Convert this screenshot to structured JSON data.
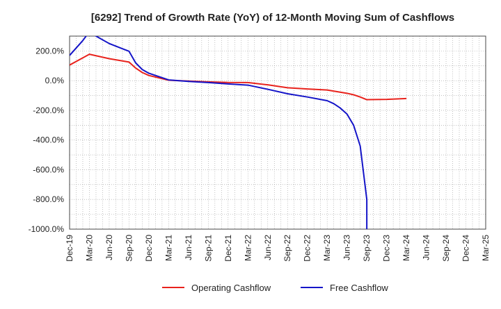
{
  "chart_data": {
    "type": "line",
    "title": "[6292]  Trend of Growth Rate (YoY) of 12-Month Moving Sum of Cashflows",
    "xlabel": "",
    "ylabel": "",
    "ylim": [
      -1000,
      300
    ],
    "grid": true,
    "legend_position": "bottom",
    "x_ticks": [
      "Dec-19",
      "Mar-20",
      "Jun-20",
      "Sep-20",
      "Dec-20",
      "Mar-21",
      "Jun-21",
      "Sep-21",
      "Dec-21",
      "Mar-22",
      "Jun-22",
      "Sep-22",
      "Dec-22",
      "Mar-23",
      "Jun-23",
      "Sep-23",
      "Dec-23",
      "Mar-24",
      "Jun-24",
      "Sep-24",
      "Dec-24",
      "Mar-25"
    ],
    "y_ticks": [
      {
        "value": 200,
        "label": "200.0%"
      },
      {
        "value": 0,
        "label": "0.0%"
      },
      {
        "value": -200,
        "label": "-200.0%"
      },
      {
        "value": -400,
        "label": "-400.0%"
      },
      {
        "value": -600,
        "label": "-600.0%"
      },
      {
        "value": -800,
        "label": "-800.0%"
      },
      {
        "value": -1000,
        "label": "-1000.0%"
      }
    ],
    "series": [
      {
        "name": "Operating Cashflow",
        "color": "#e8221c",
        "points": [
          {
            "x": "Dec-19",
            "y": 105
          },
          {
            "x": "Mar-20",
            "y": 178
          },
          {
            "x": "Jun-20",
            "y": 148
          },
          {
            "x": "Sep-20",
            "y": 125
          },
          {
            "x": "Oct-20",
            "y": 85
          },
          {
            "x": "Nov-20",
            "y": 55
          },
          {
            "x": "Dec-20",
            "y": 35
          },
          {
            "x": "Mar-21",
            "y": 3
          },
          {
            "x": "Jun-21",
            "y": -3
          },
          {
            "x": "Sep-21",
            "y": -8
          },
          {
            "x": "Dec-21",
            "y": -12
          },
          {
            "x": "Mar-22",
            "y": -13
          },
          {
            "x": "Jun-22",
            "y": -28
          },
          {
            "x": "Sep-22",
            "y": -48
          },
          {
            "x": "Dec-22",
            "y": -56
          },
          {
            "x": "Mar-23",
            "y": -63
          },
          {
            "x": "Jun-23",
            "y": -85
          },
          {
            "x": "Jul-23",
            "y": -95
          },
          {
            "x": "Aug-23",
            "y": -110
          },
          {
            "x": "Sep-23",
            "y": -128
          },
          {
            "x": "Dec-23",
            "y": -126
          },
          {
            "x": "Mar-24",
            "y": -120
          }
        ]
      },
      {
        "name": "Free Cashflow",
        "color": "#1414c8",
        "points": [
          {
            "x": "Dec-19",
            "y": 170
          },
          {
            "x": "Feb-20",
            "y": 270
          },
          {
            "x": "Mar-20",
            "y": 330
          },
          {
            "x": "Apr-20",
            "y": 300
          },
          {
            "x": "Jun-20",
            "y": 250
          },
          {
            "x": "Aug-20",
            "y": 215
          },
          {
            "x": "Sep-20",
            "y": 198
          },
          {
            "x": "Oct-20",
            "y": 120
          },
          {
            "x": "Nov-20",
            "y": 75
          },
          {
            "x": "Dec-20",
            "y": 50
          },
          {
            "x": "Mar-21",
            "y": 5
          },
          {
            "x": "Jun-21",
            "y": -5
          },
          {
            "x": "Sep-21",
            "y": -13
          },
          {
            "x": "Dec-21",
            "y": -22
          },
          {
            "x": "Mar-22",
            "y": -30
          },
          {
            "x": "Jun-22",
            "y": -58
          },
          {
            "x": "Sep-22",
            "y": -88
          },
          {
            "x": "Dec-22",
            "y": -110
          },
          {
            "x": "Mar-23",
            "y": -135
          },
          {
            "x": "Apr-23",
            "y": -155
          },
          {
            "x": "May-23",
            "y": -185
          },
          {
            "x": "Jun-23",
            "y": -225
          },
          {
            "x": "Jul-23",
            "y": -300
          },
          {
            "x": "Aug-23",
            "y": -440
          },
          {
            "x": "Sep-23",
            "y": -800
          },
          {
            "x": "Sep-23",
            "y": -1000
          }
        ]
      }
    ]
  }
}
